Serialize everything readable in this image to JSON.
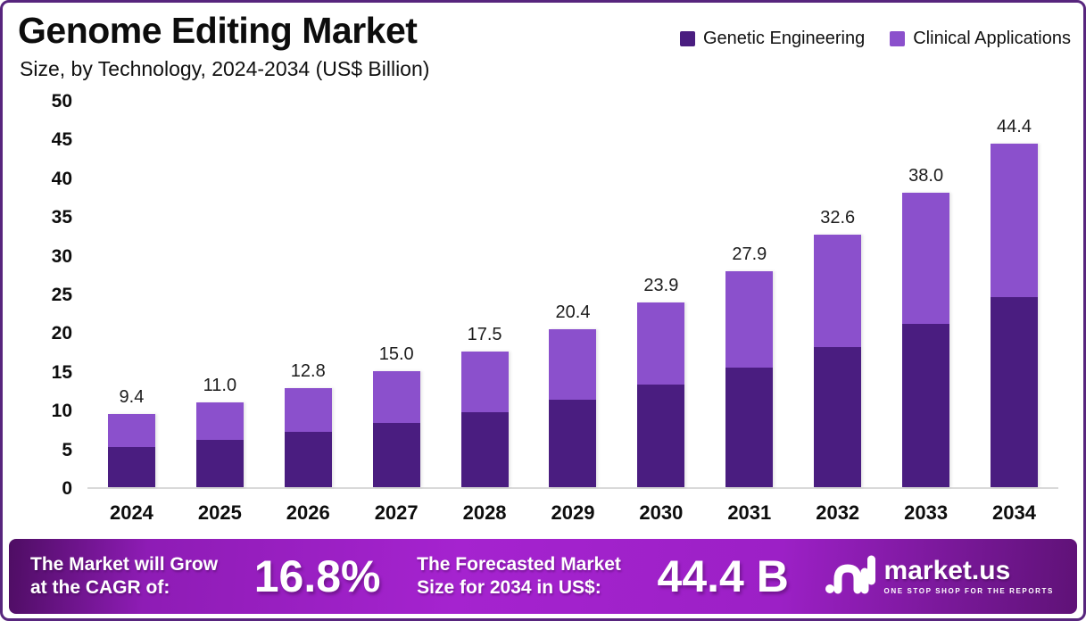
{
  "header": {
    "title": "Genome Editing Market",
    "subtitle": "Size, by Technology, 2024-2034 (US$ Billion)"
  },
  "legend": [
    {
      "label": "Genetic Engineering",
      "color": "#4a1d80"
    },
    {
      "label": "Clinical Applications",
      "color": "#8b50cc"
    }
  ],
  "chart_data": {
    "type": "bar",
    "stacked": true,
    "title": "Genome Editing Market",
    "subtitle": "Size, by Technology, 2024-2034 (US$ Billion)",
    "categories": [
      "2024",
      "2025",
      "2026",
      "2027",
      "2028",
      "2029",
      "2030",
      "2031",
      "2032",
      "2033",
      "2034"
    ],
    "series": [
      {
        "name": "Genetic Engineering",
        "color": "#4a1d80",
        "values": [
          5.2,
          6.1,
          7.1,
          8.3,
          9.7,
          11.3,
          13.3,
          15.5,
          18.1,
          21.1,
          24.6
        ]
      },
      {
        "name": "Clinical Applications",
        "color": "#8b50cc",
        "values": [
          4.2,
          4.9,
          5.7,
          6.7,
          7.8,
          9.1,
          10.6,
          12.4,
          14.5,
          16.9,
          19.8
        ]
      }
    ],
    "totals": [
      9.4,
      11.0,
      12.8,
      15.0,
      17.5,
      20.4,
      23.9,
      27.9,
      32.6,
      38.0,
      44.4
    ],
    "total_labels": [
      "9.4",
      "11.0",
      "12.8",
      "15.0",
      "17.5",
      "20.4",
      "23.9",
      "27.9",
      "32.6",
      "38.0",
      "44.4"
    ],
    "xlabel": "",
    "ylabel": "",
    "ylim": [
      0,
      50
    ],
    "yticks": [
      0,
      5,
      10,
      15,
      20,
      25,
      30,
      35,
      40,
      45,
      50
    ],
    "grid": false,
    "legend_position": "top-right"
  },
  "footer": {
    "cagr_label_line1": "The Market will Grow",
    "cagr_label_line2": "at the CAGR of:",
    "cagr_value": "16.8%",
    "forecast_label_line1": "The Forecasted Market",
    "forecast_label_line2": "Size for 2034 in US$:",
    "forecast_value": "44.4 B",
    "brand": {
      "name": "market.us",
      "tagline": "ONE STOP SHOP FOR THE REPORTS"
    }
  },
  "colors": {
    "frame_border": "#57257d",
    "baseline": "#d9d9d9",
    "banner_purple": "#a523cf",
    "text_dark": "#0d0d0d",
    "text_light": "#ffffff"
  }
}
